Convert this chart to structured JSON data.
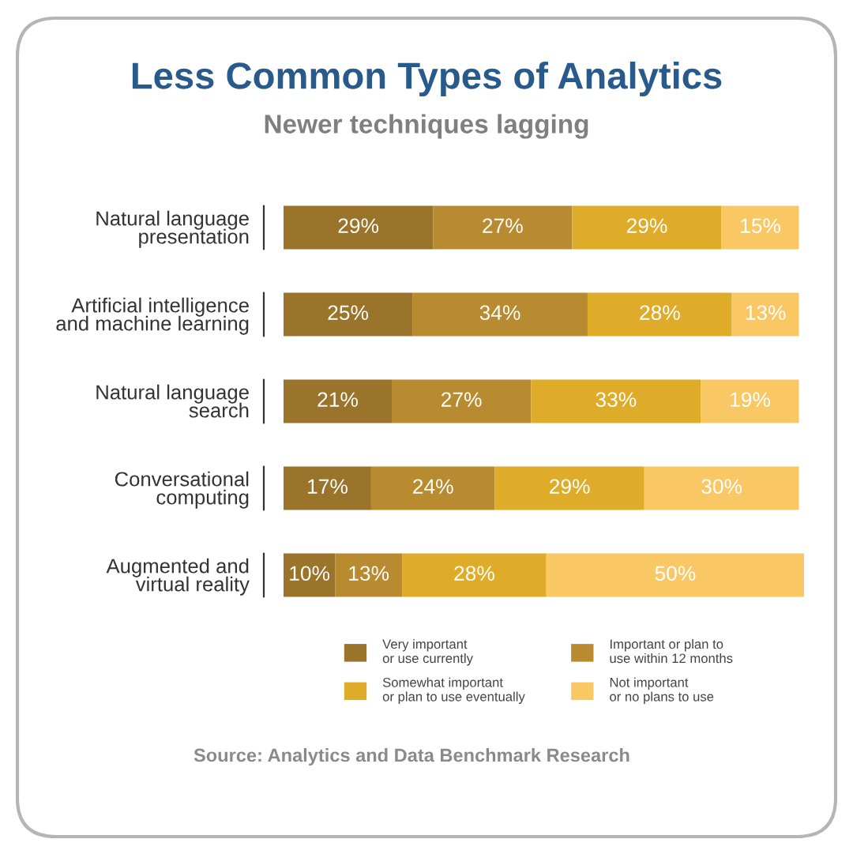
{
  "chart_data": {
    "type": "bar",
    "orientation": "horizontal",
    "stacked": true,
    "title": "Less Common Types of Analytics",
    "subtitle": "Newer techniques lagging",
    "categories": [
      "Natural language\npresentation",
      "Artificial intelligence\nand machine learning",
      "Natural language\nsearch",
      "Conversational\ncomputing",
      "Augmented and\nvirtual reality"
    ],
    "series": [
      {
        "name": "Very important\nor use currently",
        "color": "#9a742a",
        "values": [
          29,
          25,
          21,
          17,
          10
        ],
        "value_labels": [
          "29%",
          "25%",
          "21%",
          "17%",
          "10%"
        ]
      },
      {
        "name": "Important or plan to\nuse within 12 months",
        "color": "#b88b30",
        "values": [
          27,
          34,
          27,
          24,
          13
        ],
        "value_labels": [
          "27%",
          "34%",
          "27%",
          "24%",
          "13%"
        ]
      },
      {
        "name": "Somewhat important\nor plan to use eventually",
        "color": "#deac28",
        "values": [
          29,
          28,
          33,
          29,
          28
        ],
        "value_labels": [
          "29%",
          "28%",
          "33%",
          "29%",
          "28%"
        ]
      },
      {
        "name": "Not important\nor no plans to use",
        "color": "#f9c864",
        "values": [
          15,
          13,
          19,
          30,
          50
        ],
        "value_labels": [
          "15%",
          "13%",
          "19%",
          "30%",
          "50%"
        ]
      }
    ],
    "legend": "bottom",
    "tick_labels": "y",
    "annotations": [
      "Source: Analytics and Data Benchmark Research"
    ]
  }
}
